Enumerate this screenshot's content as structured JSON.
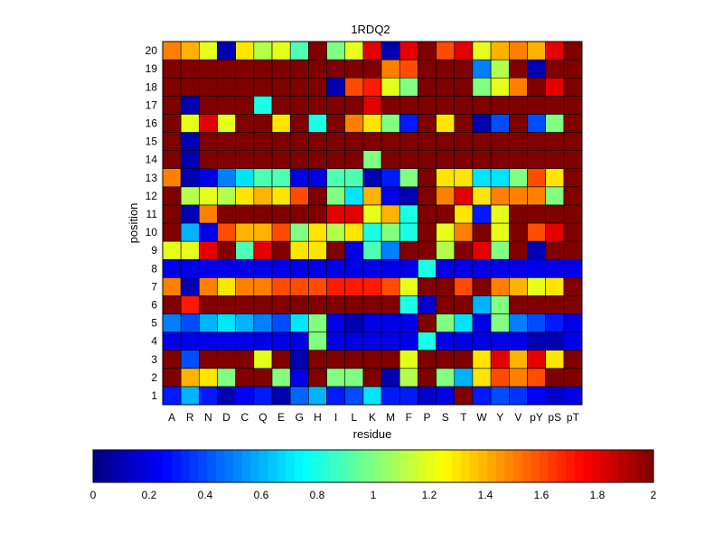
{
  "chart_data": {
    "type": "heatmap",
    "title": "1RDQ2",
    "xlabel": "residue",
    "ylabel": "position",
    "x_categories": [
      "A",
      "R",
      "N",
      "D",
      "C",
      "Q",
      "E",
      "G",
      "H",
      "I",
      "L",
      "K",
      "M",
      "F",
      "P",
      "S",
      "T",
      "W",
      "Y",
      "V",
      "pY",
      "pS",
      "pT"
    ],
    "y_categories": [
      "1",
      "2",
      "3",
      "4",
      "5",
      "6",
      "7",
      "8",
      "9",
      "10",
      "11",
      "12",
      "13",
      "14",
      "15",
      "16",
      "17",
      "18",
      "19",
      "20"
    ],
    "colorscale": "jet",
    "clim": [
      0,
      2
    ],
    "colorbar_ticks": [
      "0",
      "0.2",
      "0.4",
      "0.6",
      "0.8",
      "1",
      "1.2",
      "1.4",
      "1.6",
      "1.8",
      "2"
    ],
    "values": [
      [
        0.3,
        0.6,
        0.3,
        0.1,
        0.25,
        0.3,
        0.1,
        0.45,
        0.6,
        0.3,
        0.4,
        0.7,
        0.3,
        0.3,
        0.15,
        0.2,
        2.0,
        0.3,
        0.4,
        0.35,
        0.25,
        0.15,
        0.2
      ],
      [
        2.0,
        1.4,
        1.3,
        1.0,
        2.0,
        2.0,
        1.0,
        0.2,
        2.0,
        1.0,
        1.0,
        2.0,
        0.1,
        1.1,
        2.0,
        1.0,
        0.6,
        1.3,
        1.6,
        1.5,
        1.6,
        2.0,
        2.0
      ],
      [
        2.0,
        0.4,
        2.0,
        2.0,
        2.0,
        1.2,
        2.0,
        0.1,
        2.0,
        2.0,
        2.0,
        2.0,
        2.0,
        1.2,
        2.0,
        2.0,
        2.0,
        1.3,
        1.8,
        1.4,
        1.8,
        1.3,
        2.0
      ],
      [
        0.2,
        0.2,
        0.2,
        0.2,
        0.2,
        0.2,
        0.2,
        0.2,
        1.0,
        0.2,
        0.2,
        0.2,
        0.2,
        0.2,
        0.8,
        0.2,
        0.2,
        0.2,
        0.2,
        0.2,
        0.1,
        0.1,
        0.2
      ],
      [
        0.5,
        0.4,
        0.6,
        0.7,
        0.6,
        0.5,
        0.4,
        0.7,
        1.0,
        0.2,
        0.1,
        0.2,
        0.2,
        0.2,
        2.0,
        1.0,
        0.7,
        0.2,
        1.0,
        0.5,
        0.4,
        0.3,
        0.2
      ],
      [
        2.0,
        1.7,
        2.0,
        2.0,
        2.0,
        2.0,
        2.0,
        2.0,
        2.0,
        2.0,
        2.0,
        2.0,
        2.0,
        0.8,
        0.15,
        2.0,
        2.0,
        0.6,
        1.0,
        2.0,
        2.0,
        2.0,
        2.0
      ],
      [
        1.5,
        0.1,
        1.5,
        1.3,
        1.5,
        1.5,
        1.6,
        1.6,
        1.6,
        1.7,
        1.7,
        1.7,
        1.6,
        1.2,
        2.0,
        2.0,
        1.6,
        2.0,
        1.5,
        1.4,
        1.2,
        1.3,
        2.0
      ],
      [
        0.2,
        0.2,
        0.2,
        0.2,
        0.2,
        0.2,
        0.2,
        0.2,
        0.2,
        0.2,
        0.2,
        0.2,
        0.2,
        0.2,
        0.8,
        0.2,
        0.2,
        0.2,
        0.2,
        0.2,
        0.2,
        0.2,
        0.2
      ],
      [
        1.2,
        1.2,
        1.8,
        2.0,
        0.9,
        1.8,
        2.0,
        1.3,
        1.3,
        2.0,
        0.2,
        0.9,
        0.5,
        2.0,
        2.0,
        1.1,
        2.0,
        1.8,
        1.0,
        2.0,
        0.1,
        2.0,
        2.0
      ],
      [
        2.0,
        0.6,
        0.2,
        1.6,
        1.4,
        1.4,
        1.6,
        1.0,
        1.3,
        1.1,
        1.3,
        0.8,
        1.0,
        0.8,
        2.0,
        1.2,
        1.5,
        2.0,
        1.2,
        2.0,
        1.6,
        1.8,
        2.0
      ],
      [
        2.0,
        0.1,
        1.5,
        2.0,
        2.0,
        2.0,
        2.0,
        2.0,
        2.0,
        1.8,
        1.8,
        1.2,
        1.4,
        0.8,
        2.0,
        2.0,
        1.3,
        0.3,
        1.2,
        2.0,
        2.0,
        2.0,
        2.0
      ],
      [
        2.0,
        1.1,
        1.2,
        1.1,
        1.3,
        1.4,
        1.3,
        1.6,
        2.0,
        1.0,
        0.7,
        1.4,
        0.2,
        0.1,
        2.0,
        1.5,
        1.8,
        1.3,
        1.5,
        1.5,
        1.5,
        1.0,
        2.0
      ],
      [
        1.5,
        0.1,
        0.2,
        0.5,
        0.7,
        0.9,
        0.9,
        0.2,
        0.2,
        0.9,
        0.9,
        0.1,
        0.3,
        1.0,
        2.0,
        1.3,
        1.3,
        0.7,
        0.7,
        1.0,
        1.6,
        1.3,
        2.0
      ],
      [
        2.0,
        0.1,
        2.0,
        2.0,
        2.0,
        2.0,
        2.0,
        2.0,
        2.0,
        2.0,
        2.0,
        1.0,
        2.0,
        2.0,
        2.0,
        2.0,
        2.0,
        2.0,
        2.0,
        2.0,
        2.0,
        2.0,
        2.0
      ],
      [
        2.0,
        0.1,
        2.0,
        2.0,
        2.0,
        2.0,
        2.0,
        2.0,
        2.0,
        2.0,
        2.0,
        2.0,
        2.0,
        2.0,
        2.0,
        2.0,
        2.0,
        2.0,
        2.0,
        2.0,
        2.0,
        2.0,
        2.0
      ],
      [
        2.0,
        1.2,
        1.8,
        1.2,
        2.0,
        2.0,
        1.3,
        2.0,
        0.8,
        2.0,
        1.5,
        1.3,
        1.0,
        0.3,
        2.0,
        1.3,
        2.0,
        0.1,
        0.4,
        2.0,
        0.4,
        1.0,
        2.0
      ],
      [
        2.0,
        0.1,
        2.0,
        2.0,
        2.0,
        0.8,
        2.0,
        2.0,
        2.0,
        2.0,
        2.0,
        1.8,
        2.0,
        2.0,
        2.0,
        2.0,
        2.0,
        2.0,
        2.0,
        2.0,
        2.0,
        2.0,
        2.0
      ],
      [
        2.0,
        2.0,
        2.0,
        2.0,
        2.0,
        2.0,
        2.0,
        2.0,
        2.0,
        0.1,
        1.6,
        1.7,
        1.2,
        1.0,
        2.0,
        2.0,
        2.0,
        1.0,
        1.2,
        1.5,
        2.0,
        1.8,
        2.0
      ],
      [
        2.0,
        2.0,
        2.0,
        2.0,
        2.0,
        2.0,
        2.0,
        2.0,
        2.0,
        2.0,
        2.0,
        2.0,
        1.5,
        1.6,
        2.0,
        2.0,
        2.0,
        0.5,
        1.1,
        2.0,
        0.1,
        2.0,
        2.0
      ],
      [
        1.5,
        1.4,
        1.2,
        0.1,
        1.3,
        1.1,
        1.2,
        0.9,
        2.0,
        1.0,
        1.2,
        1.8,
        0.1,
        1.8,
        2.0,
        1.6,
        1.8,
        1.2,
        1.4,
        1.5,
        1.4,
        1.8,
        2.0
      ]
    ]
  }
}
